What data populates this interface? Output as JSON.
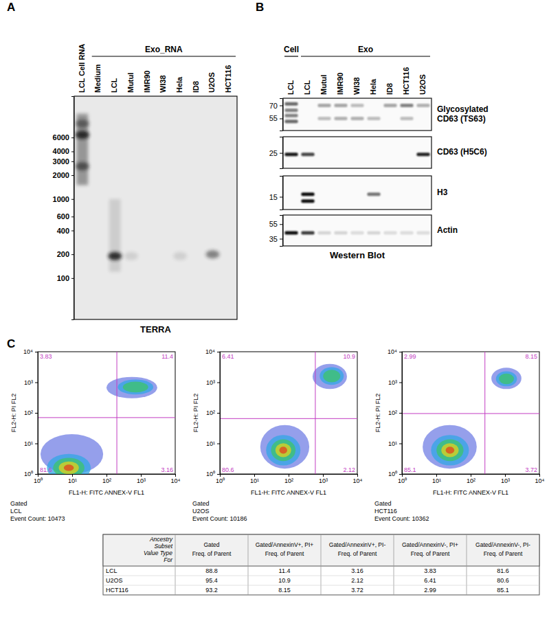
{
  "panel_a": {
    "label": "A",
    "lanes": [
      "LCL Cell RNA",
      "Medium",
      "LCL",
      "Mutul",
      "IMR90",
      "WI38",
      "Hela",
      "ID8",
      "U2OS",
      "HCT116"
    ],
    "group": {
      "label": "Exo_RNA",
      "lanes": [
        1,
        9
      ]
    },
    "ylim": [
      30,
      20000
    ],
    "ladder": [
      6000,
      4000,
      3000,
      2000,
      1000,
      600,
      400,
      200,
      100
    ],
    "caption": "TERRA",
    "smears": [
      {
        "lane": 0,
        "size": [
          1500,
          12000
        ],
        "intensity": 0.45
      },
      {
        "lane": 2,
        "size": [
          120,
          1000
        ],
        "intensity": 0.15
      }
    ],
    "bands": [
      {
        "lane": 0,
        "size": 6500,
        "intensity": 0.9
      },
      {
        "lane": 0,
        "size": 9000,
        "intensity": 0.5
      },
      {
        "lane": 0,
        "size": 2600,
        "intensity": 0.6
      },
      {
        "lane": 2,
        "size": 190,
        "intensity": 0.9
      },
      {
        "lane": 3,
        "size": 190,
        "intensity": 0.12
      },
      {
        "lane": 6,
        "size": 190,
        "intensity": 0.12
      },
      {
        "lane": 8,
        "size": 200,
        "intensity": 0.5
      }
    ]
  },
  "panel_b": {
    "label": "B",
    "lanes": [
      "LCL",
      "LCL",
      "Mutul",
      "IMR90",
      "WI38",
      "Hela",
      "ID8",
      "HCT116",
      "U2OS"
    ],
    "groups": [
      {
        "label": "Cell",
        "lanes": [
          0,
          0
        ]
      },
      {
        "label": "Exo",
        "lanes": [
          1,
          8
        ]
      }
    ],
    "caption": "Western Blot",
    "strips": [
      {
        "name": [
          "Glycosylated",
          "CD63 (TS63)"
        ],
        "ylim": [
          44,
          80
        ],
        "markers": [
          70,
          55
        ],
        "bands": [
          {
            "lane": 0,
            "size": 72,
            "intensity": 0.6
          },
          {
            "lane": 0,
            "size": 64,
            "intensity": 0.5
          },
          {
            "lane": 0,
            "size": 58,
            "intensity": 0.5
          },
          {
            "lane": 0,
            "size": 52,
            "intensity": 0.6
          },
          {
            "lane": 2,
            "size": 70,
            "intensity": 0.35
          },
          {
            "lane": 3,
            "size": 70,
            "intensity": 0.35
          },
          {
            "lane": 4,
            "size": 70,
            "intensity": 0.25
          },
          {
            "lane": 6,
            "size": 70,
            "intensity": 0.35
          },
          {
            "lane": 7,
            "size": 70,
            "intensity": 0.5
          },
          {
            "lane": 8,
            "size": 70,
            "intensity": 0.3
          },
          {
            "lane": 2,
            "size": 55,
            "intensity": 0.25
          },
          {
            "lane": 3,
            "size": 55,
            "intensity": 0.3
          },
          {
            "lane": 4,
            "size": 55,
            "intensity": 0.3
          },
          {
            "lane": 5,
            "size": 55,
            "intensity": 0.25
          },
          {
            "lane": 7,
            "size": 55,
            "intensity": 0.25
          }
        ]
      },
      {
        "name": [
          "CD63 (H5C6)"
        ],
        "ylim": [
          16,
          40
        ],
        "markers": [
          25
        ],
        "bands": [
          {
            "lane": 0,
            "size": 24,
            "intensity": 0.95
          },
          {
            "lane": 1,
            "size": 24,
            "intensity": 0.75
          },
          {
            "lane": 8,
            "size": 24,
            "intensity": 0.9
          }
        ]
      },
      {
        "name": [
          "H3"
        ],
        "ylim": [
          11,
          25
        ],
        "markers": [
          15
        ],
        "bands": [
          {
            "lane": 1,
            "size": 16,
            "intensity": 1.0
          },
          {
            "lane": 1,
            "size": 13.5,
            "intensity": 1.0
          },
          {
            "lane": 5,
            "size": 16,
            "intensity": 0.55
          }
        ]
      },
      {
        "name": [
          "Actin"
        ],
        "ylim": [
          28,
          73
        ],
        "markers": [
          55,
          35
        ],
        "bands": [
          {
            "lane": 0,
            "size": 42,
            "intensity": 1.0
          },
          {
            "lane": 1,
            "size": 42,
            "intensity": 0.8
          },
          {
            "lane": 2,
            "size": 42,
            "intensity": 0.15
          },
          {
            "lane": 3,
            "size": 42,
            "intensity": 0.15
          },
          {
            "lane": 4,
            "size": 42,
            "intensity": 0.12
          },
          {
            "lane": 5,
            "size": 42,
            "intensity": 0.15
          },
          {
            "lane": 6,
            "size": 42,
            "intensity": 0.12
          },
          {
            "lane": 7,
            "size": 42,
            "intensity": 0.12
          },
          {
            "lane": 8,
            "size": 42,
            "intensity": 0.12
          }
        ]
      }
    ]
  },
  "panel_c": {
    "label": "C"
  },
  "chart_data": [
    {
      "type": "scatter",
      "log": true,
      "x_label": "FL1-H: FITC ANNEX-V FL1",
      "y_label": "FL2-H: PI FL2",
      "xlim": [
        1,
        10000
      ],
      "ylim": [
        1,
        10000
      ],
      "xticks": [
        {
          "value": 1,
          "label": "10⁰"
        },
        {
          "value": 10,
          "label": "10¹"
        },
        {
          "value": 100,
          "label": "10²"
        },
        {
          "value": 1000,
          "label": "10³"
        },
        {
          "value": 10000,
          "label": "10⁴"
        }
      ],
      "yticks": [
        {
          "value": 1,
          "label": "10⁰"
        },
        {
          "value": 10,
          "label": "10¹"
        },
        {
          "value": 100,
          "label": "10²"
        },
        {
          "value": 1000,
          "label": "10³"
        },
        {
          "value": 10000,
          "label": "10⁴"
        }
      ],
      "gate": {
        "x": 200,
        "y": 70
      },
      "quadrants": {
        "upper_left": 3.83,
        "upper_right": 11.4,
        "lower_left": 81.6,
        "lower_right": 3.16
      },
      "populations": [
        {
          "x": [
            1.2,
            80
          ],
          "y": [
            1,
            20
          ],
          "peak": [
            8,
            1.6
          ],
          "density": 1
        },
        {
          "x": [
            100,
            3000
          ],
          "y": [
            300,
            1500
          ],
          "peak": [
            700,
            700
          ],
          "density": 0.4
        }
      ],
      "caption": [
        "Gated",
        "LCL",
        "Event Count: 10473"
      ]
    },
    {
      "type": "scatter",
      "log": true,
      "x_label": "FL1-H: FITC ANNEX-V FL1",
      "y_label": "FL2-H: PI FL2",
      "xlim": [
        1,
        10000
      ],
      "ylim": [
        1,
        10000
      ],
      "xticks": [
        {
          "value": 1,
          "label": "10⁰"
        },
        {
          "value": 10,
          "label": "10¹"
        },
        {
          "value": 100,
          "label": "10²"
        },
        {
          "value": 1000,
          "label": "10³"
        },
        {
          "value": 10000,
          "label": "10⁴"
        }
      ],
      "yticks": [
        {
          "value": 1,
          "label": "10⁰"
        },
        {
          "value": 10,
          "label": "10¹"
        },
        {
          "value": 100,
          "label": "10²"
        },
        {
          "value": 1000,
          "label": "10³"
        },
        {
          "value": 10000,
          "label": "10⁴"
        }
      ],
      "gate": {
        "x": 600,
        "y": 65
      },
      "quadrants": {
        "upper_left": 6.41,
        "upper_right": 10.9,
        "lower_left": 80.6,
        "lower_right": 2.12
      },
      "populations": [
        {
          "x": [
            15,
            400
          ],
          "y": [
            1.5,
            40
          ],
          "peak": [
            70,
            6
          ],
          "density": 1
        },
        {
          "x": [
            500,
            5000
          ],
          "y": [
            600,
            4000
          ],
          "peak": [
            1800,
            1600
          ],
          "density": 0.6
        }
      ],
      "caption": [
        "Gated",
        "U2OS",
        "Event Count: 10186"
      ]
    },
    {
      "type": "scatter",
      "log": true,
      "x_label": "FL1-H: FITC ANNEX-V FL1",
      "y_label": "FL2-H: PI FL2",
      "xlim": [
        1,
        10000
      ],
      "ylim": [
        1,
        10000
      ],
      "xticks": [
        {
          "value": 1,
          "label": "10⁰"
        },
        {
          "value": 10,
          "label": "10¹"
        },
        {
          "value": 100,
          "label": "10²"
        },
        {
          "value": 1000,
          "label": "10³"
        },
        {
          "value": 10000,
          "label": "10⁴"
        }
      ],
      "yticks": [
        {
          "value": 1,
          "label": "10⁰"
        },
        {
          "value": 10,
          "label": "10¹"
        },
        {
          "value": 100,
          "label": "10²"
        },
        {
          "value": 1000,
          "label": "10³"
        },
        {
          "value": 10000,
          "label": "10⁴"
        }
      ],
      "gate": {
        "x": 260,
        "y": 95
      },
      "quadrants": {
        "upper_left": 2.99,
        "upper_right": 8.15,
        "lower_left": 85.1,
        "lower_right": 3.72
      },
      "populations": [
        {
          "x": [
            4,
            150
          ],
          "y": [
            1.5,
            40
          ],
          "peak": [
            25,
            6
          ],
          "density": 1
        },
        {
          "x": [
            400,
            3000
          ],
          "y": [
            600,
            3000
          ],
          "peak": [
            1100,
            1300
          ],
          "density": 0.4
        }
      ],
      "caption": [
        "Gated",
        "HCT116",
        "Event Count: 10362"
      ]
    }
  ],
  "table": {
    "header": [
      [
        "Ancestry",
        "Subset",
        "Value Type",
        "For"
      ],
      [
        "Gated",
        "Freq. of Parent"
      ],
      [
        "Gated/AnnexinV+, PI+",
        "Freq. of Parent"
      ],
      [
        "Gated/AnnexinV+, PI-",
        "Freq. of Parent"
      ],
      [
        "Gated/AnnexinV-, PI+",
        "Freq. of Parent"
      ],
      [
        "Gated/AnnexinV-, PI-",
        "Freq. of Parent"
      ]
    ],
    "rows": [
      [
        "LCL",
        88.8,
        11.4,
        3.16,
        3.83,
        81.6
      ],
      [
        "U2OS",
        95.4,
        10.9,
        2.12,
        6.41,
        80.6
      ],
      [
        "HCT116",
        93.2,
        8.15,
        3.72,
        2.99,
        85.1
      ]
    ]
  }
}
